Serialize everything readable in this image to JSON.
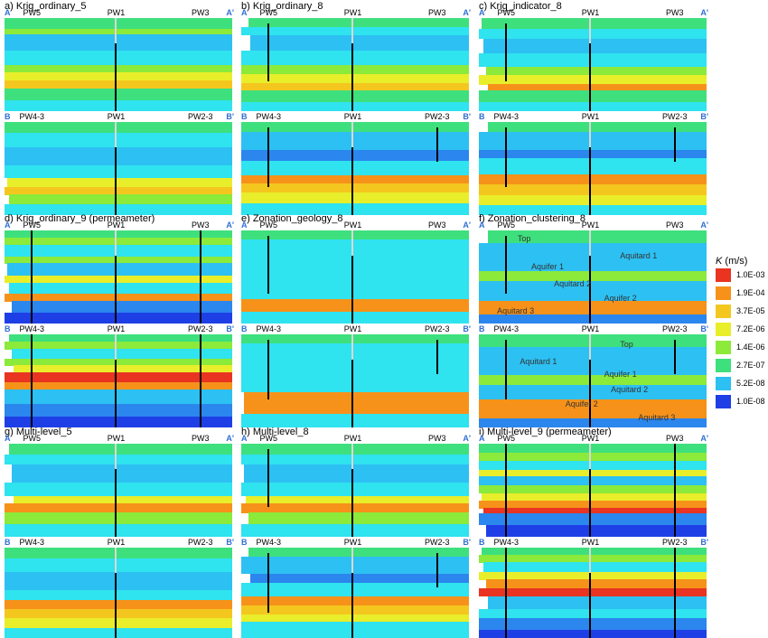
{
  "colors": {
    "dblue": "#1f3fe6",
    "blue": "#2b86ee",
    "lblue": "#2dc0f2",
    "cyan": "#2fe3ef",
    "green": "#3ee07d",
    "lgreen": "#8bea3a",
    "yellow": "#e8ee2a",
    "yorange": "#f4c71f",
    "orange": "#f6921a",
    "red": "#e93421",
    "well": "#000000",
    "gap": "#d8d8d8",
    "edge_label": "#2f6fd6"
  },
  "panels": [
    {
      "title": "a) Krig_ordinary_5",
      "sections": [
        {
          "edges": [
            "A",
            "A'"
          ],
          "wells": [
            "PW5",
            "PW1",
            "PW3"
          ],
          "well_lines": [
            "",
            "PW1",
            ""
          ],
          "zones": [],
          "bands": [
            [
              "green",
              12
            ],
            [
              "lgreen",
              5
            ],
            [
              "lblue",
              18
            ],
            [
              "cyan",
              15
            ],
            [
              "lgreen",
              8
            ],
            [
              "yellow",
              9
            ],
            [
              "yorange",
              9
            ],
            [
              "green",
              12
            ],
            [
              "cyan",
              12
            ]
          ]
        },
        {
          "edges": [
            "B",
            "B'"
          ],
          "wells": [
            "PW4-3",
            "PW1",
            "PW2-3"
          ],
          "well_lines": [
            "",
            "PW1",
            ""
          ],
          "zones": [],
          "bands": [
            [
              "green",
              12
            ],
            [
              "cyan",
              15
            ],
            [
              "lblue",
              20
            ],
            [
              "cyan",
              13
            ],
            [
              "yellow",
              10
            ],
            [
              "yorange",
              8
            ],
            [
              "lgreen",
              10
            ],
            [
              "cyan",
              12
            ]
          ]
        }
      ]
    },
    {
      "title": "b) Krig_ordinary_8",
      "sections": [
        {
          "edges": [
            "A",
            "A'"
          ],
          "wells": [
            "PW5",
            "PW1",
            "PW3"
          ],
          "well_lines": [
            "PW5",
            "PW1",
            ""
          ],
          "zones": [],
          "bands": [
            [
              "green",
              10
            ],
            [
              "cyan",
              8
            ],
            [
              "lblue",
              17
            ],
            [
              "cyan",
              15
            ],
            [
              "lgreen",
              10
            ],
            [
              "yellow",
              10
            ],
            [
              "yorange",
              8
            ],
            [
              "green",
              12
            ],
            [
              "cyan",
              10
            ]
          ]
        },
        {
          "edges": [
            "B",
            "B'"
          ],
          "wells": [
            "PW4-3",
            "PW1",
            "PW2-3"
          ],
          "well_lines": [
            "PW4-3",
            "PW1",
            "PW2-3"
          ],
          "zones": [],
          "bands": [
            [
              "green",
              10
            ],
            [
              "lblue",
              18
            ],
            [
              "blue",
              10
            ],
            [
              "cyan",
              15
            ],
            [
              "orange",
              8
            ],
            [
              "yorange",
              9
            ],
            [
              "yellow",
              10
            ],
            [
              "cyan",
              12
            ]
          ]
        }
      ]
    },
    {
      "title": "c) Krig_indicator_8",
      "sections": [
        {
          "edges": [
            "A",
            "A'"
          ],
          "wells": [
            "PW5",
            "PW1",
            "PW3"
          ],
          "well_lines": [
            "PW5",
            "PW1",
            ""
          ],
          "zones": [],
          "bands": [
            [
              "green",
              12
            ],
            [
              "cyan",
              10
            ],
            [
              "lblue",
              16
            ],
            [
              "cyan",
              14
            ],
            [
              "lgreen",
              9
            ],
            [
              "yellow",
              10
            ],
            [
              "orange",
              7
            ],
            [
              "green",
              12
            ],
            [
              "cyan",
              10
            ]
          ]
        },
        {
          "edges": [
            "B",
            "B'"
          ],
          "wells": [
            "PW4-3",
            "PW1",
            "PW2-3"
          ],
          "well_lines": [
            "PW4-3",
            "PW1",
            "PW2-3"
          ],
          "zones": [],
          "bands": [
            [
              "green",
              10
            ],
            [
              "lblue",
              18
            ],
            [
              "blue",
              8
            ],
            [
              "cyan",
              16
            ],
            [
              "orange",
              10
            ],
            [
              "yorange",
              10
            ],
            [
              "yellow",
              10
            ],
            [
              "cyan",
              10
            ]
          ]
        }
      ]
    },
    {
      "title": "d) Krig_ordinary_9 (permeameter)",
      "sections": [
        {
          "edges": [
            "A",
            "A'"
          ],
          "wells": [
            "PW5",
            "PW1",
            "PW3"
          ],
          "well_lines": [
            "PW5",
            "PW1",
            "PW3"
          ],
          "zones": [],
          "bands": [
            [
              "green",
              8
            ],
            [
              "lgreen",
              8
            ],
            [
              "cyan",
              12
            ],
            [
              "lgreen",
              7
            ],
            [
              "lblue",
              14
            ],
            [
              "yellow",
              7
            ],
            [
              "cyan",
              12
            ],
            [
              "orange",
              8
            ],
            [
              "blue",
              12
            ],
            [
              "dblue",
              12
            ]
          ]
        },
        {
          "edges": [
            "B",
            "B'"
          ],
          "wells": [
            "PW4-3",
            "PW1",
            "PW2-3"
          ],
          "well_lines": [
            "PW4-3",
            "PW1",
            "PW2-3"
          ],
          "zones": [],
          "bands": [
            [
              "green",
              8
            ],
            [
              "lgreen",
              8
            ],
            [
              "cyan",
              10
            ],
            [
              "lgreen",
              7
            ],
            [
              "yellow",
              8
            ],
            [
              "red",
              10
            ],
            [
              "orange",
              8
            ],
            [
              "lblue",
              16
            ],
            [
              "blue",
              13
            ],
            [
              "dblue",
              12
            ]
          ]
        }
      ]
    },
    {
      "title": "e) Zonation_geology_8",
      "sections": [
        {
          "edges": [
            "A",
            "A'"
          ],
          "wells": [
            "PW5",
            "PW1",
            "PW3"
          ],
          "well_lines": [
            "PW5",
            "PW1",
            ""
          ],
          "zones": [],
          "bands": [
            [
              "green",
              10
            ],
            [
              "cyan",
              64
            ],
            [
              "orange",
              13
            ],
            [
              "cyan",
              13
            ]
          ]
        },
        {
          "edges": [
            "B",
            "B'"
          ],
          "wells": [
            "PW4-3",
            "PW1",
            "PW2-3"
          ],
          "well_lines": [
            "PW4-3",
            "PW1",
            "PW2-3"
          ],
          "zones": [],
          "bands": [
            [
              "green",
              10
            ],
            [
              "cyan",
              52
            ],
            [
              "orange",
              23
            ],
            [
              "cyan",
              15
            ]
          ]
        }
      ]
    },
    {
      "title": "f) Zonation_clustering_8",
      "sections": [
        {
          "edges": [
            "A",
            "A'"
          ],
          "wells": [
            "PW5",
            "PW1",
            "PW3"
          ],
          "well_lines": [
            "PW5",
            "PW1",
            ""
          ],
          "zones": [
            "Top",
            "Aquitard 1",
            "Aquifer 1",
            "Aquitard 2",
            "Aquifer 2",
            "Aquitard 3"
          ],
          "bands": [
            [
              "green",
              14
            ],
            [
              "lblue",
              30
            ],
            [
              "lgreen",
              10
            ],
            [
              "lblue",
              22
            ],
            [
              "orange",
              14
            ],
            [
              "blue",
              10
            ]
          ]
        },
        {
          "edges": [
            "B",
            "B'"
          ],
          "wells": [
            "PW4-3",
            "PW1",
            "PW2-3"
          ],
          "well_lines": [
            "PW4-3",
            "PW1",
            "PW2-3"
          ],
          "zones": [
            "Top",
            "Aquitard 1",
            "Aquifer 1",
            "Aquitard 2",
            "Aquifer 2",
            "Aquitard 3"
          ],
          "bands": [
            [
              "green",
              14
            ],
            [
              "lblue",
              30
            ],
            [
              "lgreen",
              10
            ],
            [
              "lblue",
              16
            ],
            [
              "orange",
              20
            ],
            [
              "blue",
              10
            ]
          ]
        }
      ]
    },
    {
      "title": "g) Multi-level_5",
      "sections": [
        {
          "edges": [
            "A",
            "A'"
          ],
          "wells": [
            "PW5",
            "PW1",
            "PW3"
          ],
          "well_lines": [
            "",
            "PW1",
            ""
          ],
          "zones": [],
          "bands": [
            [
              "green",
              12
            ],
            [
              "cyan",
              10
            ],
            [
              "lblue",
              20
            ],
            [
              "cyan",
              14
            ],
            [
              "yellow",
              8
            ],
            [
              "orange",
              10
            ],
            [
              "lgreen",
              12
            ],
            [
              "cyan",
              14
            ]
          ]
        },
        {
          "edges": [
            "B",
            "B'"
          ],
          "wells": [
            "PW4-3",
            "PW1",
            "PW2-3"
          ],
          "well_lines": [
            "",
            "PW1",
            ""
          ],
          "zones": [],
          "bands": [
            [
              "green",
              12
            ],
            [
              "cyan",
              14
            ],
            [
              "lblue",
              20
            ],
            [
              "cyan",
              10
            ],
            [
              "orange",
              10
            ],
            [
              "yorange",
              10
            ],
            [
              "yellow",
              10
            ],
            [
              "cyan",
              14
            ]
          ]
        }
      ]
    },
    {
      "title": "h) Multi-level_8",
      "sections": [
        {
          "edges": [
            "A",
            "A'"
          ],
          "wells": [
            "PW5",
            "PW1",
            "PW3"
          ],
          "well_lines": [
            "PW5",
            "PW1",
            ""
          ],
          "zones": [],
          "bands": [
            [
              "green",
              12
            ],
            [
              "cyan",
              10
            ],
            [
              "lblue",
              20
            ],
            [
              "cyan",
              14
            ],
            [
              "yellow",
              8
            ],
            [
              "orange",
              10
            ],
            [
              "lgreen",
              12
            ],
            [
              "cyan",
              14
            ]
          ]
        },
        {
          "edges": [
            "B",
            "B'"
          ],
          "wells": [
            "PW4-3",
            "PW1",
            "PW2-3"
          ],
          "well_lines": [
            "PW4-3",
            "PW1",
            "PW2-3"
          ],
          "zones": [],
          "bands": [
            [
              "green",
              10
            ],
            [
              "lblue",
              18
            ],
            [
              "blue",
              10
            ],
            [
              "cyan",
              14
            ],
            [
              "orange",
              10
            ],
            [
              "yorange",
              10
            ],
            [
              "yellow",
              8
            ],
            [
              "cyan",
              20
            ]
          ]
        }
      ]
    },
    {
      "title": "i) Multi-level_9 (permeameter)",
      "sections": [
        {
          "edges": [
            "A",
            "A'"
          ],
          "wells": [
            "PW5",
            "PW1",
            "PW3"
          ],
          "well_lines": [
            "PW5",
            "PW1",
            "PW3"
          ],
          "zones": [],
          "bands": [
            [
              "green",
              10
            ],
            [
              "lgreen",
              8
            ],
            [
              "cyan",
              10
            ],
            [
              "yellow",
              7
            ],
            [
              "lblue",
              10
            ],
            [
              "lgreen",
              8
            ],
            [
              "yellow",
              8
            ],
            [
              "orange",
              8
            ],
            [
              "red",
              6
            ],
            [
              "blue",
              12
            ],
            [
              "dblue",
              13
            ]
          ]
        },
        {
          "edges": [
            "B",
            "B'"
          ],
          "wells": [
            "PW4-3",
            "PW1",
            "PW2-3"
          ],
          "well_lines": [
            "PW4-3",
            "PW1",
            "PW2-3"
          ],
          "zones": [],
          "bands": [
            [
              "green",
              8
            ],
            [
              "lgreen",
              8
            ],
            [
              "cyan",
              10
            ],
            [
              "yellow",
              8
            ],
            [
              "orange",
              10
            ],
            [
              "red",
              8
            ],
            [
              "lblue",
              14
            ],
            [
              "cyan",
              10
            ],
            [
              "blue",
              12
            ],
            [
              "dblue",
              12
            ]
          ]
        }
      ]
    }
  ],
  "legend": {
    "title_symbol": "K",
    "title_unit": " (m/s)",
    "entries": [
      {
        "label": "1.0E-03",
        "color": "red"
      },
      {
        "label": "1.9E-04",
        "color": "orange"
      },
      {
        "label": "3.7E-05",
        "color": "yorange"
      },
      {
        "label": "7.2E-06",
        "color": "yellow"
      },
      {
        "label": "1.4E-06",
        "color": "lgreen"
      },
      {
        "label": "2.7E-07",
        "color": "green"
      },
      {
        "label": "5.2E-08",
        "color": "lblue"
      },
      {
        "label": "1.0E-08",
        "color": "dblue"
      }
    ]
  }
}
